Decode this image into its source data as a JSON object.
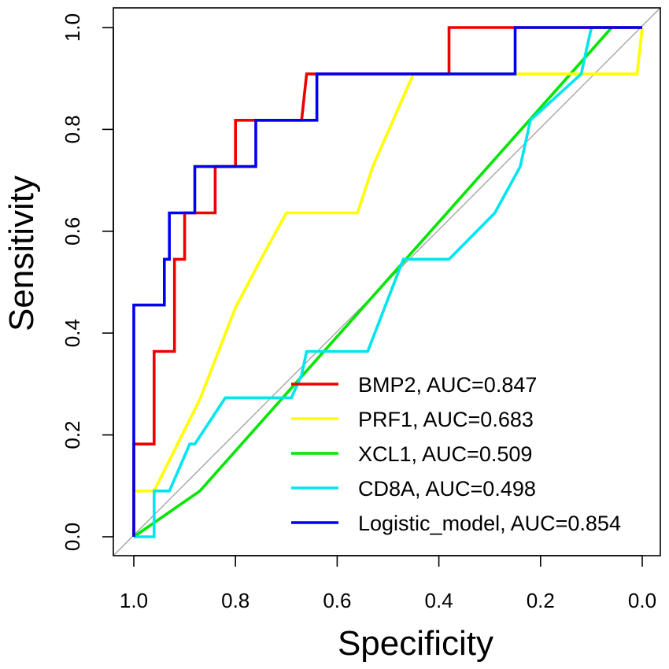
{
  "chart_data": {
    "type": "line",
    "title": "",
    "xlabel": "Specificity",
    "ylabel": "Sensitivity",
    "xlim": [
      1.0,
      0.0
    ],
    "ylim": [
      0.0,
      1.0
    ],
    "x_reversed": true,
    "grid": false,
    "legend_position": "bottom-right",
    "xticks": [
      1.0,
      0.8,
      0.6,
      0.4,
      0.2,
      0.0
    ],
    "xtick_labels": [
      "1.0",
      "0.8",
      "0.6",
      "0.4",
      "0.2",
      "0.0"
    ],
    "yticks": [
      0.0,
      0.2,
      0.4,
      0.6,
      0.8,
      1.0
    ],
    "ytick_labels": [
      "0.0",
      "0.2",
      "0.4",
      "0.6",
      "0.8",
      "1.0"
    ],
    "diagonal_color": "#a0a0a0",
    "series": [
      {
        "name": "XCL1",
        "legend_label": "XCL1, AUC=0.509",
        "auc": 0.509,
        "color": "#00e600",
        "specificity": [
          1.0,
          0.87,
          0.06
        ],
        "sensitivity": [
          0.0,
          0.09,
          1.0
        ]
      },
      {
        "name": "PRF1",
        "legend_label": "PRF1, AUC=0.683",
        "auc": 0.683,
        "color": "#ffff00",
        "specificity": [
          1.0,
          1.0,
          0.96,
          0.87,
          0.8,
          0.75,
          0.7,
          0.56,
          0.53,
          0.45,
          0.01,
          0.0
        ],
        "sensitivity": [
          0.0,
          0.09,
          0.09,
          0.27,
          0.45,
          0.545,
          0.636,
          0.636,
          0.727,
          0.909,
          0.909,
          1.0
        ]
      },
      {
        "name": "CD8A",
        "legend_label": "CD8A, AUC=0.498",
        "auc": 0.498,
        "color": "#00e5ee",
        "specificity": [
          1.0,
          0.96,
          0.96,
          0.93,
          0.89,
          0.88,
          0.82,
          0.69,
          0.67,
          0.66,
          0.54,
          0.47,
          0.38,
          0.29,
          0.24,
          0.22,
          0.12,
          0.11,
          0.1,
          0.0
        ],
        "sensitivity": [
          0.0,
          0.0,
          0.09,
          0.09,
          0.182,
          0.182,
          0.273,
          0.273,
          0.318,
          0.364,
          0.364,
          0.545,
          0.545,
          0.636,
          0.727,
          0.818,
          0.909,
          0.955,
          1.0,
          1.0
        ]
      },
      {
        "name": "BMP2",
        "legend_label": "BMP2, AUC=0.847",
        "auc": 0.847,
        "color": "#ee0000",
        "specificity": [
          1.0,
          1.0,
          0.96,
          0.96,
          0.92,
          0.92,
          0.9,
          0.9,
          0.84,
          0.84,
          0.8,
          0.8,
          0.67,
          0.66,
          0.38,
          0.38,
          0.0
        ],
        "sensitivity": [
          0.0,
          0.182,
          0.182,
          0.364,
          0.364,
          0.545,
          0.545,
          0.636,
          0.636,
          0.727,
          0.727,
          0.818,
          0.818,
          0.909,
          0.909,
          1.0,
          1.0
        ]
      },
      {
        "name": "Logistic_model",
        "legend_label": "Logistic_model, AUC=0.854",
        "auc": 0.854,
        "color": "#0000ee",
        "specificity": [
          1.0,
          1.0,
          0.94,
          0.94,
          0.93,
          0.93,
          0.88,
          0.88,
          0.76,
          0.76,
          0.64,
          0.64,
          0.25,
          0.25,
          0.0
        ],
        "sensitivity": [
          0.0,
          0.455,
          0.455,
          0.545,
          0.545,
          0.636,
          0.636,
          0.727,
          0.727,
          0.818,
          0.818,
          0.909,
          0.909,
          1.0,
          1.0
        ]
      }
    ],
    "legend_order": [
      "BMP2",
      "PRF1",
      "XCL1",
      "CD8A",
      "Logistic_model"
    ]
  }
}
